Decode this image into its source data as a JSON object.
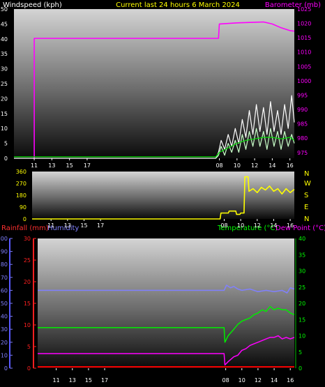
{
  "header": {
    "left": "Windspeed (kph)",
    "center": "Current last 24 hours 6 March 2024",
    "right": "Barometer (mb)"
  },
  "x_ticks": [
    "11",
    "13",
    "15",
    "17",
    "08",
    "10",
    "12",
    "14",
    "16"
  ],
  "panel3_header": {
    "rain": "Rainfall (mm)",
    "humidity": "Humidity",
    "temperature": "Temperature (°C)",
    "dewpoint": "Dew Point (°C)"
  },
  "colors": {
    "wind": "#ffffff",
    "gust": "#c8ffc8",
    "avg": "#00dd00",
    "baro": "#ff00ff",
    "dir": "#ffff00",
    "rain": "#ff0000",
    "hum": "#8080ff",
    "temp": "#00ee00",
    "dew": "#ff00ff",
    "rain_axis": "#ff2020",
    "hum_axis": "#6060ff",
    "temp_axis": "#00ff00"
  },
  "chart_data": [
    {
      "type": "line",
      "title": "Current last 24 hours 6 March 2024",
      "x_domain": [
        8.7,
        40.5
      ],
      "x_ticks": [
        11,
        13,
        15,
        17,
        32,
        34,
        36,
        38,
        40
      ],
      "y_left": {
        "label": "Windspeed (kph)",
        "range": [
          0,
          50
        ],
        "ticks": [
          0,
          5,
          10,
          15,
          20,
          25,
          30,
          35,
          40,
          45,
          50
        ]
      },
      "y_right": {
        "label": "Barometer (mb)",
        "range": [
          973,
          1025
        ],
        "ticks": [
          975,
          980,
          985,
          990,
          995,
          1000,
          1005,
          1010,
          1015,
          1020,
          1025
        ]
      },
      "series": [
        {
          "key": "baro",
          "axis": "right",
          "points": [
            [
              10.9,
              973
            ],
            [
              11,
              973
            ],
            [
              11,
              1014.8
            ],
            [
              31.9,
              1014.8
            ],
            [
              32,
              1019.8
            ],
            [
              34,
              1020.2
            ],
            [
              36,
              1020.4
            ],
            [
              37,
              1020.5
            ],
            [
              38,
              1019.8
            ],
            [
              39,
              1018.5
            ],
            [
              40,
              1017.5
            ],
            [
              40.5,
              1017.3
            ]
          ]
        },
        {
          "key": "wind",
          "axis": "left",
          "points": [
            [
              8.7,
              0
            ],
            [
              31.6,
              0
            ],
            [
              31.9,
              2
            ],
            [
              32.2,
              6
            ],
            [
              32.6,
              3
            ],
            [
              33,
              8
            ],
            [
              33.4,
              4
            ],
            [
              33.8,
              10
            ],
            [
              34.2,
              5
            ],
            [
              34.6,
              13
            ],
            [
              35,
              7
            ],
            [
              35.4,
              16
            ],
            [
              35.8,
              8
            ],
            [
              36.2,
              18
            ],
            [
              36.6,
              9
            ],
            [
              37,
              17
            ],
            [
              37.4,
              8
            ],
            [
              37.8,
              19
            ],
            [
              38.2,
              9
            ],
            [
              38.6,
              16
            ],
            [
              39,
              8
            ],
            [
              39.4,
              18
            ],
            [
              39.8,
              10
            ],
            [
              40.2,
              21
            ],
            [
              40.5,
              12
            ]
          ]
        },
        {
          "key": "gust",
          "axis": "left",
          "points": [
            [
              31.6,
              0
            ],
            [
              31.9,
              1
            ],
            [
              32.2,
              4
            ],
            [
              32.6,
              1
            ],
            [
              33,
              5
            ],
            [
              33.4,
              2
            ],
            [
              33.8,
              6
            ],
            [
              34.2,
              2
            ],
            [
              34.6,
              8
            ],
            [
              35,
              3
            ],
            [
              35.4,
              9
            ],
            [
              35.8,
              4
            ],
            [
              36.2,
              10
            ],
            [
              36.6,
              4
            ],
            [
              37,
              9
            ],
            [
              37.4,
              3
            ],
            [
              37.8,
              10
            ],
            [
              38.2,
              4
            ],
            [
              38.6,
              9
            ],
            [
              39,
              3
            ],
            [
              39.4,
              9
            ],
            [
              39.8,
              4
            ],
            [
              40.2,
              8
            ],
            [
              40.5,
              5
            ]
          ]
        },
        {
          "key": "avg",
          "axis": "left",
          "points": [
            [
              8.7,
              0.5
            ],
            [
              31.6,
              0.5
            ],
            [
              32,
              2
            ],
            [
              33,
              3.5
            ],
            [
              34,
              5
            ],
            [
              35,
              6
            ],
            [
              36,
              6.5
            ],
            [
              37,
              7
            ],
            [
              38,
              7
            ],
            [
              39,
              6.5
            ],
            [
              40,
              7
            ],
            [
              40.5,
              6
            ]
          ]
        }
      ]
    },
    {
      "type": "line",
      "x_domain": [
        8.7,
        40.5
      ],
      "y_left": {
        "range": [
          0,
          360
        ],
        "ticks": [
          0,
          90,
          180,
          270,
          360
        ]
      },
      "y_right_labels": [
        "N",
        "W",
        "S",
        "E",
        "N"
      ],
      "series": [
        {
          "key": "dir",
          "axis": "left",
          "points": [
            [
              8.7,
              0
            ],
            [
              31.5,
              0
            ],
            [
              31.6,
              45
            ],
            [
              32.5,
              45
            ],
            [
              32.6,
              60
            ],
            [
              33.4,
              60
            ],
            [
              33.5,
              35
            ],
            [
              33.9,
              35
            ],
            [
              34,
              45
            ],
            [
              34.4,
              45
            ],
            [
              34.5,
              320
            ],
            [
              34.9,
              320
            ],
            [
              35,
              210
            ],
            [
              35.5,
              230
            ],
            [
              36,
              200
            ],
            [
              36.5,
              240
            ],
            [
              37,
              220
            ],
            [
              37.5,
              250
            ],
            [
              38,
              210
            ],
            [
              38.5,
              230
            ],
            [
              39,
              190
            ],
            [
              39.5,
              230
            ],
            [
              40,
              200
            ],
            [
              40.5,
              225
            ]
          ]
        }
      ]
    },
    {
      "type": "line",
      "x_domain": [
        8.7,
        40.5
      ],
      "y_left_outer": {
        "label": "Humidity",
        "range": [
          0,
          100
        ],
        "ticks": [
          0,
          10,
          20,
          30,
          40,
          50,
          60,
          70,
          80,
          90,
          100
        ]
      },
      "y_left_inner": {
        "label": "Rainfall (mm)",
        "range": [
          0,
          30
        ],
        "ticks": [
          0,
          5,
          10,
          15,
          20,
          25,
          30
        ]
      },
      "y_right": {
        "label": "Temperature (°C)",
        "range": [
          0,
          40
        ],
        "ticks": [
          0,
          5,
          10,
          15,
          20,
          25,
          30,
          35,
          40
        ]
      },
      "series": [
        {
          "key": "rain",
          "axis": "left_inner",
          "points": [
            [
              8.7,
              0.3
            ],
            [
              40.5,
              0.3
            ]
          ]
        },
        {
          "key": "hum",
          "axis": "left_outer",
          "points": [
            [
              8.7,
              60
            ],
            [
              31.8,
              60
            ],
            [
              32.1,
              64
            ],
            [
              32.6,
              62
            ],
            [
              33,
              63
            ],
            [
              33.5,
              61
            ],
            [
              34,
              60
            ],
            [
              35,
              61
            ],
            [
              36,
              59
            ],
            [
              37,
              60
            ],
            [
              38,
              59
            ],
            [
              39,
              60
            ],
            [
              39.6,
              58
            ],
            [
              40,
              62
            ],
            [
              40.5,
              61
            ]
          ]
        },
        {
          "key": "temp",
          "axis": "right",
          "points": [
            [
              8.7,
              12.5
            ],
            [
              31.8,
              12.5
            ],
            [
              31.9,
              8
            ],
            [
              32.3,
              10
            ],
            [
              33,
              12
            ],
            [
              33.5,
              13.5
            ],
            [
              34,
              14.5
            ],
            [
              35,
              15.5
            ],
            [
              35.5,
              16.5
            ],
            [
              36,
              17
            ],
            [
              36.5,
              18
            ],
            [
              37,
              17.5
            ],
            [
              37.5,
              19
            ],
            [
              38,
              18
            ],
            [
              38.5,
              18.5
            ],
            [
              39,
              18
            ],
            [
              39.5,
              18
            ],
            [
              40,
              17
            ],
            [
              40.5,
              16.5
            ]
          ]
        },
        {
          "key": "dew",
          "axis": "right",
          "points": [
            [
              8.7,
              4.5
            ],
            [
              31.8,
              4.5
            ],
            [
              31.9,
              1
            ],
            [
              32.3,
              2
            ],
            [
              33,
              3.5
            ],
            [
              33.5,
              4
            ],
            [
              34,
              5.5
            ],
            [
              34.5,
              6
            ],
            [
              35,
              7
            ],
            [
              35.5,
              7.5
            ],
            [
              36,
              8
            ],
            [
              37,
              9
            ],
            [
              37.5,
              9.5
            ],
            [
              38,
              9.5
            ],
            [
              38.5,
              10
            ],
            [
              39,
              9
            ],
            [
              39.5,
              9.5
            ],
            [
              40,
              9
            ],
            [
              40.5,
              9.5
            ]
          ]
        }
      ]
    }
  ]
}
